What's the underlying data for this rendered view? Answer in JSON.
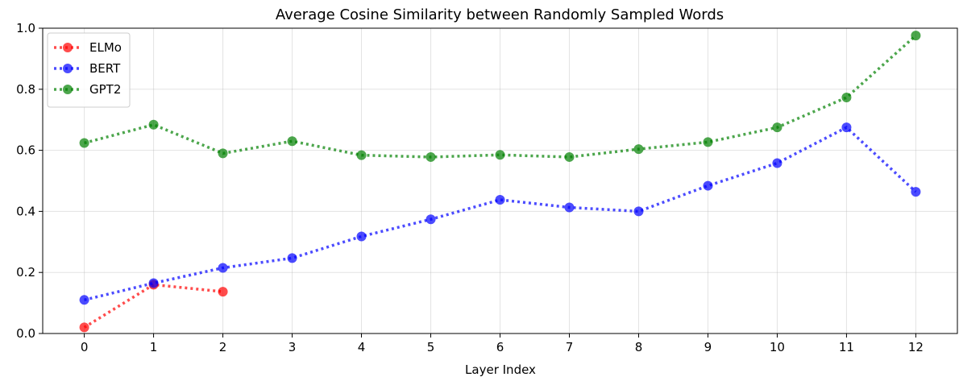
{
  "chart_data": {
    "type": "line",
    "title": "Average Cosine Similarity between Randomly Sampled Words",
    "xlabel": "Layer Index",
    "ylabel": "",
    "x": [
      0,
      1,
      2,
      3,
      4,
      5,
      6,
      7,
      8,
      9,
      10,
      11,
      12
    ],
    "xlim": [
      -0.6,
      12.6
    ],
    "ylim": [
      0.0,
      1.0
    ],
    "x_ticks": [
      "0",
      "1",
      "2",
      "3",
      "4",
      "5",
      "6",
      "7",
      "8",
      "9",
      "10",
      "11",
      "12"
    ],
    "y_ticks": [
      "0.0",
      "0.2",
      "0.4",
      "0.6",
      "0.8",
      "1.0"
    ],
    "grid": true,
    "legend_position": "top-left",
    "series": [
      {
        "name": "ELMo",
        "color": "#ff0000",
        "x": [
          0,
          1,
          2
        ],
        "values": [
          0.02,
          0.16,
          0.137
        ]
      },
      {
        "name": "BERT",
        "color": "#0000ff",
        "x": [
          0,
          1,
          2,
          3,
          4,
          5,
          6,
          7,
          8,
          9,
          10,
          11,
          12
        ],
        "values": [
          0.11,
          0.165,
          0.215,
          0.247,
          0.318,
          0.374,
          0.438,
          0.413,
          0.4,
          0.484,
          0.558,
          0.675,
          0.464
        ]
      },
      {
        "name": "GPT2",
        "color": "#008000",
        "x": [
          0,
          1,
          2,
          3,
          4,
          5,
          6,
          7,
          8,
          9,
          10,
          11,
          12
        ],
        "values": [
          0.624,
          0.684,
          0.59,
          0.63,
          0.584,
          0.578,
          0.585,
          0.578,
          0.604,
          0.627,
          0.675,
          0.773,
          0.976
        ]
      }
    ]
  }
}
